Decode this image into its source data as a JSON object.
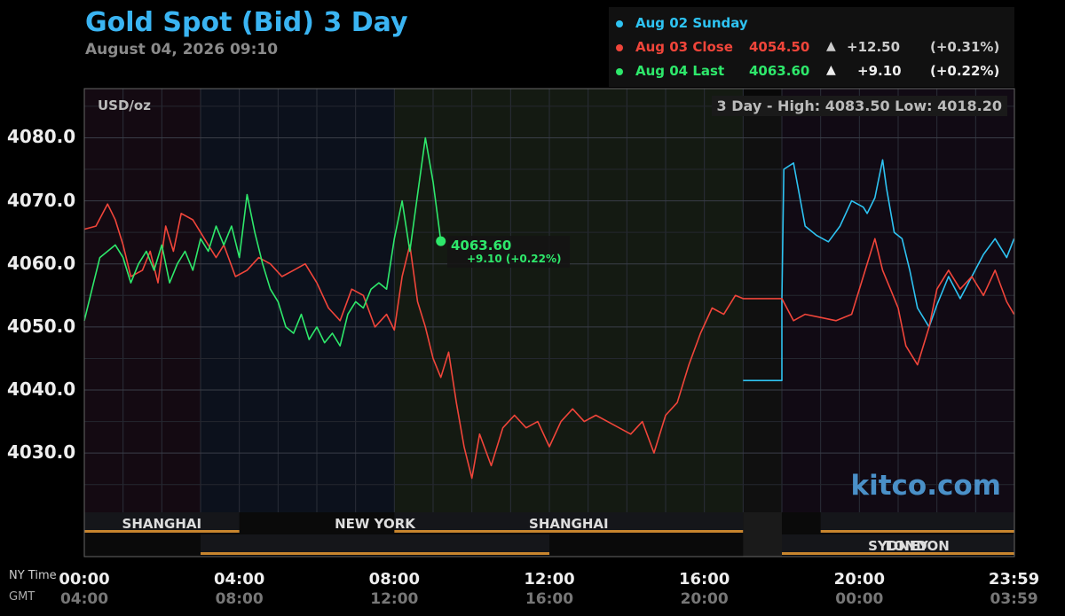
{
  "header": {
    "title": "Gold Spot (Bid) 3 Day",
    "date": "August 04, 2026 09:10"
  },
  "legend": [
    {
      "label": "Aug 02 Sunday",
      "value": "",
      "arrow": "",
      "change": "",
      "pct": "",
      "color": "#2ec3f2"
    },
    {
      "label": "Aug 03 Close",
      "value": "4054.50",
      "arrow": "▲",
      "change": "+12.50",
      "pct": "(+0.31%)",
      "color": "#f0453a"
    },
    {
      "label": "Aug 04 Last",
      "value": "4063.60",
      "arrow": "▲",
      "change": "+9.10",
      "pct": "(+0.22%)",
      "color": "#2ee86b"
    }
  ],
  "unit": "USD/oz",
  "hilo": "3 Day - High: 4083.50  Low: 4018.20",
  "watermark": "kitco.com",
  "last_label": {
    "value": "4063.60",
    "change": "+9.10 (+0.22%)"
  },
  "axis": {
    "ny_label": "NY Time",
    "gmt_label": "GMT",
    "ny_ticks": [
      "00:00",
      "04:00",
      "08:00",
      "12:00",
      "16:00",
      "20:00",
      "23:59"
    ],
    "gmt_ticks": [
      "04:00",
      "08:00",
      "12:00",
      "16:00",
      "20:00",
      "00:00",
      "03:59"
    ]
  },
  "sessions": [
    {
      "name": "SHANGHAI",
      "row": 1
    },
    {
      "name": "NEW YORK",
      "row": 1
    },
    {
      "name": "SHANGHAI",
      "row": 1
    },
    {
      "name": "LONDON",
      "row": 2
    },
    {
      "name": "SYDNEY",
      "row": 2
    }
  ],
  "chart_data": {
    "type": "line",
    "title": "Gold Spot (Bid) 3 Day",
    "ylabel": "USD/oz",
    "y_ticks": [
      4030.0,
      4040.0,
      4050.0,
      4060.0,
      4070.0,
      4080.0
    ],
    "ylim": [
      4020.6,
      4087.8
    ],
    "x_unit": "NY time hours",
    "xlim": [
      0,
      24
    ],
    "grid": true,
    "sessions": [
      {
        "name": "SHANGHAI",
        "start": 0,
        "end": 4
      },
      {
        "name": "LONDON",
        "start": 3,
        "end": 12
      },
      {
        "name": "NEW YORK",
        "start": 8,
        "end": 17
      },
      {
        "name": "SHANGHAI",
        "start": 19,
        "end": 24
      },
      {
        "name": "SYDNEY",
        "start": 18,
        "end": 24
      }
    ],
    "series": [
      {
        "name": "Aug 02 Sunday",
        "color": "#2ec3f2",
        "x": [
          17,
          18,
          18,
          18.05,
          18.3,
          18.6,
          18.9,
          19.2,
          19.5,
          19.8,
          20.1,
          20.2,
          20.4,
          20.6,
          20.7,
          20.9,
          21.1,
          21.3,
          21.5,
          21.8,
          22.0,
          22.3,
          22.6,
          22.9,
          23.2,
          23.5,
          23.8,
          23.99
        ],
        "y": [
          4041.5,
          4041.5,
          4054.5,
          4075.0,
          4076.0,
          4066.0,
          4064.5,
          4063.5,
          4066.0,
          4070.0,
          4069.0,
          4068.0,
          4070.5,
          4076.5,
          4072.0,
          4065.0,
          4064.0,
          4059.0,
          4053.0,
          4050.0,
          4053.5,
          4058.0,
          4054.5,
          4058.0,
          4061.5,
          4064.0,
          4061.0,
          4064.0
        ]
      },
      {
        "name": "Aug 03 Close",
        "color": "#f0453a",
        "x": [
          0,
          0.3,
          0.6,
          0.8,
          1.0,
          1.2,
          1.5,
          1.7,
          1.9,
          2.1,
          2.3,
          2.5,
          2.8,
          3.0,
          3.2,
          3.4,
          3.6,
          3.9,
          4.2,
          4.5,
          4.8,
          5.1,
          5.4,
          5.7,
          6.0,
          6.3,
          6.6,
          6.9,
          7.2,
          7.5,
          7.8,
          8.0,
          8.2,
          8.4,
          8.6,
          8.8,
          9.0,
          9.2,
          9.4,
          9.6,
          9.8,
          10.0,
          10.2,
          10.5,
          10.8,
          11.1,
          11.4,
          11.7,
          12.0,
          12.3,
          12.6,
          12.9,
          13.2,
          13.5,
          13.8,
          14.1,
          14.4,
          14.7,
          15.0,
          15.3,
          15.6,
          15.9,
          16.2,
          16.5,
          16.8,
          17.0,
          17.5,
          18.0,
          18.3,
          18.6,
          19.0,
          19.4,
          19.8,
          20.1,
          20.4,
          20.6,
          20.8,
          21.0,
          21.2,
          21.5,
          21.8,
          22.0,
          22.3,
          22.6,
          22.9,
          23.2,
          23.5,
          23.8,
          23.99
        ],
        "y": [
          4065.5,
          4066.0,
          4069.5,
          4067.0,
          4063.0,
          4058.0,
          4059.0,
          4062.0,
          4057.0,
          4066.0,
          4062.0,
          4068.0,
          4067.0,
          4065.0,
          4063.0,
          4061.0,
          4063.0,
          4058.0,
          4059.0,
          4061.0,
          4060.0,
          4058.0,
          4059.0,
          4060.0,
          4057.0,
          4053.0,
          4051.0,
          4056.0,
          4055.0,
          4050.0,
          4052.0,
          4049.5,
          4058.0,
          4063.0,
          4054.0,
          4050.0,
          4045.0,
          4042.0,
          4046.0,
          4038.0,
          4031.0,
          4026.0,
          4033.0,
          4028.0,
          4034.0,
          4036.0,
          4034.0,
          4035.0,
          4031.0,
          4035.0,
          4037.0,
          4035.0,
          4036.0,
          4035.0,
          4034.0,
          4033.0,
          4035.0,
          4030.0,
          4036.0,
          4038.0,
          4044.0,
          4049.0,
          4053.0,
          4052.0,
          4055.0,
          4054.5,
          4054.5,
          4054.5,
          4051.0,
          4052.0,
          4051.5,
          4051.0,
          4052.0,
          4058.0,
          4064.0,
          4059.0,
          4056.0,
          4053.0,
          4047.0,
          4044.0,
          4050.0,
          4056.0,
          4059.0,
          4056.0,
          4058.0,
          4055.0,
          4059.0,
          4054.0,
          4052.0
        ]
      },
      {
        "name": "Aug 04 Last",
        "color": "#2ee86b",
        "x": [
          0,
          0.2,
          0.4,
          0.6,
          0.8,
          1.0,
          1.2,
          1.4,
          1.6,
          1.8,
          2.0,
          2.2,
          2.4,
          2.6,
          2.8,
          3.0,
          3.2,
          3.4,
          3.6,
          3.8,
          4.0,
          4.2,
          4.4,
          4.6,
          4.8,
          5.0,
          5.2,
          5.4,
          5.6,
          5.8,
          6.0,
          6.2,
          6.4,
          6.6,
          6.8,
          7.0,
          7.2,
          7.4,
          7.6,
          7.8,
          8.0,
          8.2,
          8.4,
          8.6,
          8.8,
          9.0,
          9.2
        ],
        "y": [
          4051.0,
          4056.0,
          4061.0,
          4062.0,
          4063.0,
          4061.0,
          4057.0,
          4060.0,
          4062.0,
          4059.0,
          4063.0,
          4057.0,
          4060.0,
          4062.0,
          4059.0,
          4064.0,
          4062.0,
          4066.0,
          4063.0,
          4066.0,
          4061.0,
          4071.0,
          4065.0,
          4060.0,
          4056.0,
          4054.0,
          4050.0,
          4049.0,
          4052.0,
          4048.0,
          4050.0,
          4047.5,
          4049.0,
          4047.0,
          4052.0,
          4054.0,
          4053.0,
          4056.0,
          4057.0,
          4056.0,
          4064.0,
          4070.0,
          4062.0,
          4071.0,
          4080.0,
          4073.0,
          4063.6
        ]
      }
    ],
    "annotations": [
      "3 Day - High: 4083.50  Low: 4018.20"
    ]
  }
}
